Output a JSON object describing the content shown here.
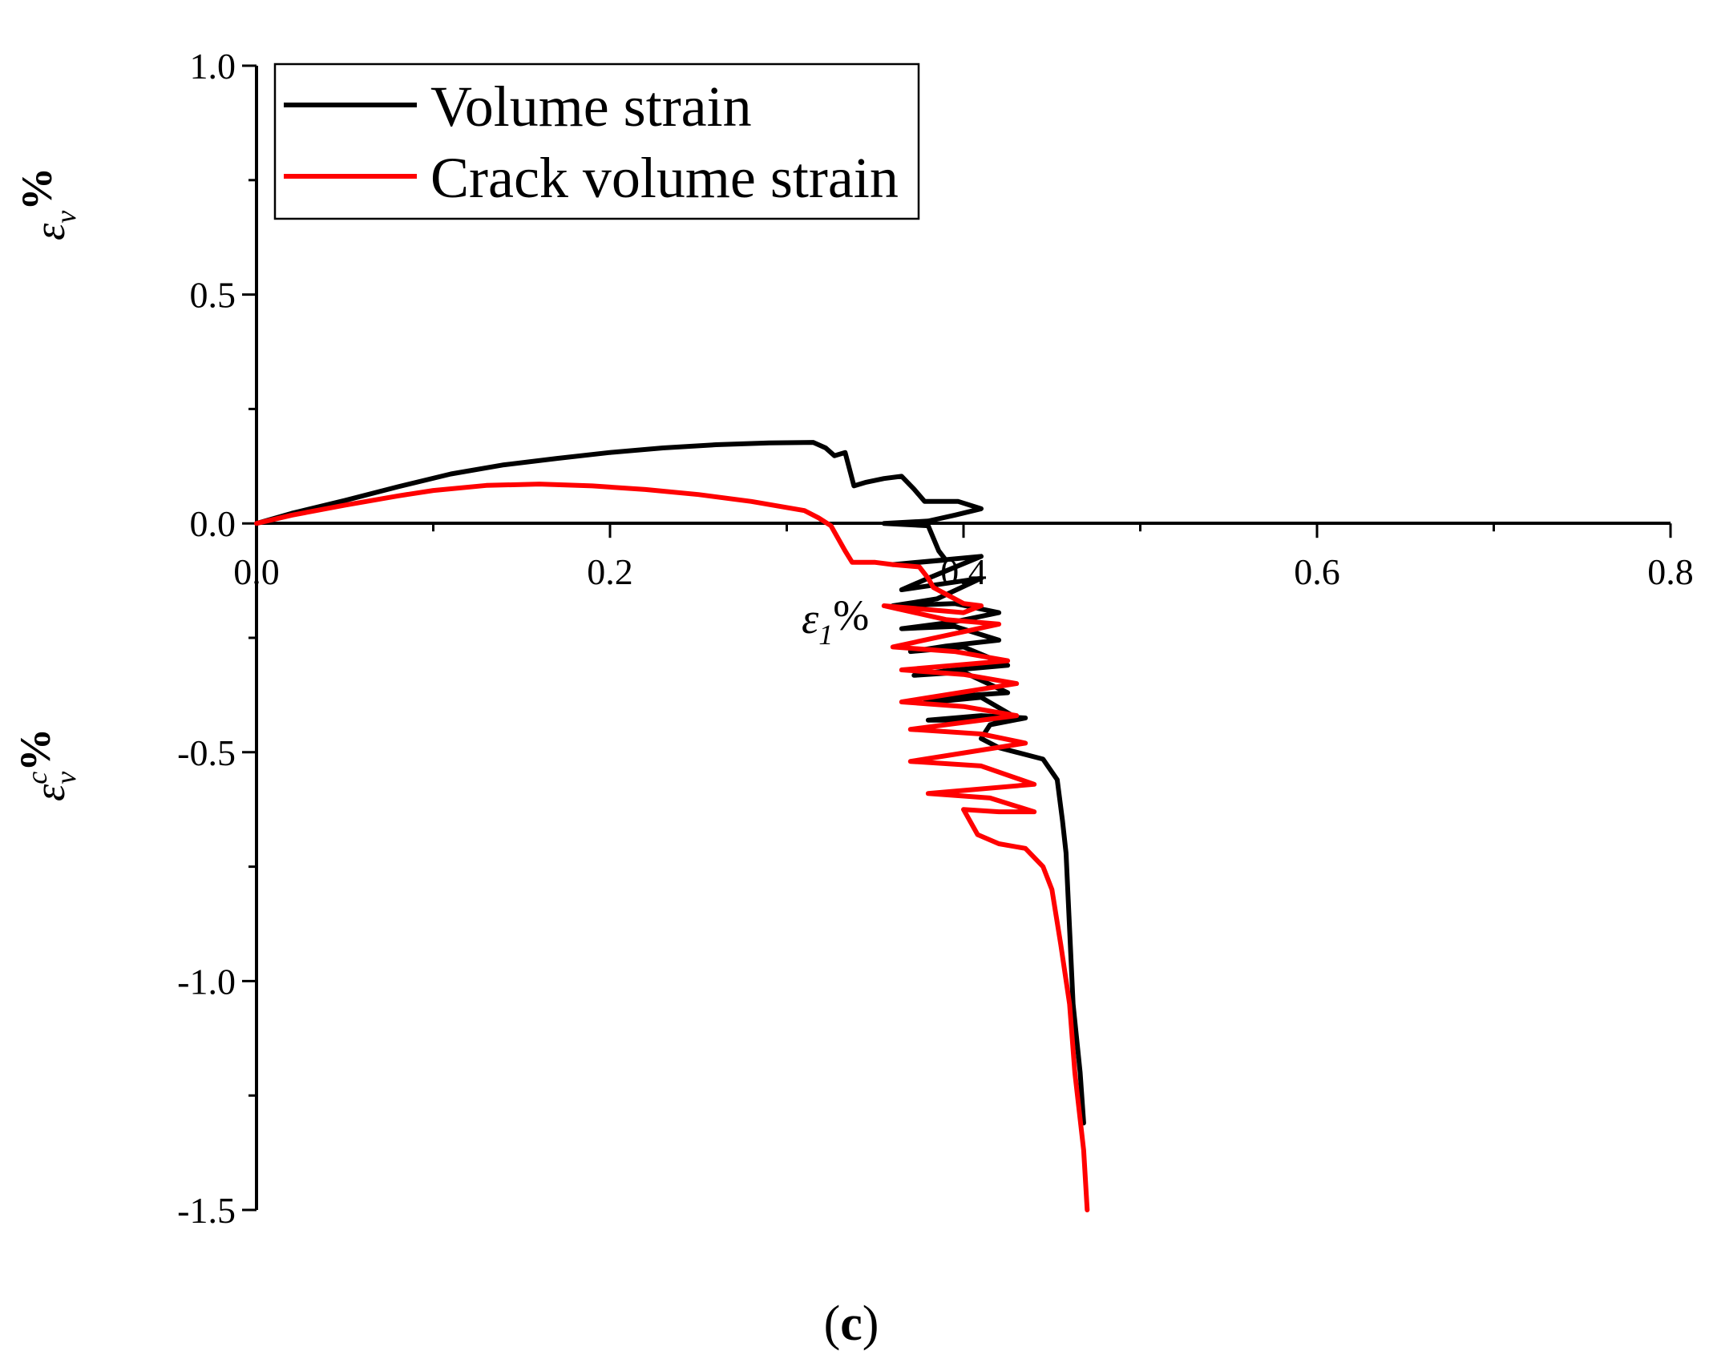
{
  "chart_data": {
    "type": "line",
    "caption": {
      "open": "(",
      "letter": "c",
      "close": ")"
    },
    "xlabel": {
      "symbol": "ε",
      "subscript": "1",
      "unit": "%"
    },
    "ylabel_top": {
      "symbol": "ε",
      "subscript": "v",
      "unit": "%"
    },
    "ylabel_bottom": {
      "symbol": "ε",
      "superscript": "c",
      "subscript": "v",
      "unit": "%"
    },
    "xlim": [
      0,
      0.8
    ],
    "ylim": [
      -1.5,
      1.0
    ],
    "xticks": [
      {
        "value": 0.0,
        "label": "0.0"
      },
      {
        "value": 0.2,
        "label": "0.2"
      },
      {
        "value": 0.4,
        "label": "0.4"
      },
      {
        "value": 0.6,
        "label": "0.6"
      },
      {
        "value": 0.8,
        "label": "0.8"
      }
    ],
    "yticks": [
      {
        "value": 1.0,
        "label": "1.0"
      },
      {
        "value": 0.5,
        "label": "0.5"
      },
      {
        "value": 0.0,
        "label": "0.0"
      },
      {
        "value": -0.5,
        "label": "-0.5"
      },
      {
        "value": -1.0,
        "label": "-1.0"
      },
      {
        "value": -1.5,
        "label": "-1.5"
      }
    ],
    "legend": {
      "position": "top-left"
    },
    "series": [
      {
        "name": "Volume strain",
        "color": "#000000",
        "points": [
          [
            0.0,
            0.0
          ],
          [
            0.02,
            0.022
          ],
          [
            0.05,
            0.05
          ],
          [
            0.08,
            0.08
          ],
          [
            0.11,
            0.108
          ],
          [
            0.14,
            0.128
          ],
          [
            0.17,
            0.142
          ],
          [
            0.2,
            0.155
          ],
          [
            0.23,
            0.165
          ],
          [
            0.26,
            0.172
          ],
          [
            0.29,
            0.176
          ],
          [
            0.315,
            0.177
          ],
          [
            0.322,
            0.165
          ],
          [
            0.327,
            0.148
          ],
          [
            0.333,
            0.155
          ],
          [
            0.338,
            0.082
          ],
          [
            0.345,
            0.09
          ],
          [
            0.355,
            0.098
          ],
          [
            0.365,
            0.103
          ],
          [
            0.372,
            0.075
          ],
          [
            0.378,
            0.048
          ],
          [
            0.385,
            0.048
          ],
          [
            0.397,
            0.048
          ],
          [
            0.41,
            0.032
          ],
          [
            0.395,
            0.018
          ],
          [
            0.38,
            0.005
          ],
          [
            0.355,
            0.0
          ],
          [
            0.38,
            -0.005
          ],
          [
            0.386,
            -0.06
          ],
          [
            0.39,
            -0.08
          ],
          [
            0.36,
            -0.09
          ],
          [
            0.41,
            -0.072
          ],
          [
            0.38,
            -0.12
          ],
          [
            0.365,
            -0.145
          ],
          [
            0.41,
            -0.12
          ],
          [
            0.385,
            -0.165
          ],
          [
            0.36,
            -0.18
          ],
          [
            0.395,
            -0.175
          ],
          [
            0.42,
            -0.195
          ],
          [
            0.395,
            -0.215
          ],
          [
            0.365,
            -0.23
          ],
          [
            0.395,
            -0.225
          ],
          [
            0.42,
            -0.255
          ],
          [
            0.39,
            -0.268
          ],
          [
            0.37,
            -0.28
          ],
          [
            0.4,
            -0.27
          ],
          [
            0.425,
            -0.31
          ],
          [
            0.39,
            -0.322
          ],
          [
            0.372,
            -0.332
          ],
          [
            0.4,
            -0.325
          ],
          [
            0.425,
            -0.37
          ],
          [
            0.395,
            -0.378
          ],
          [
            0.378,
            -0.392
          ],
          [
            0.41,
            -0.38
          ],
          [
            0.43,
            -0.425
          ],
          [
            0.405,
            -0.43
          ],
          [
            0.38,
            -0.43
          ],
          [
            0.41,
            -0.42
          ],
          [
            0.435,
            -0.425
          ],
          [
            0.415,
            -0.44
          ],
          [
            0.41,
            -0.47
          ],
          [
            0.42,
            -0.49
          ],
          [
            0.43,
            -0.5
          ],
          [
            0.445,
            -0.515
          ],
          [
            0.453,
            -0.56
          ],
          [
            0.456,
            -0.65
          ],
          [
            0.458,
            -0.72
          ],
          [
            0.462,
            -1.05
          ],
          [
            0.466,
            -1.2
          ],
          [
            0.468,
            -1.31
          ]
        ]
      },
      {
        "name": "Crack volume strain",
        "color": "#ff0000",
        "points": [
          [
            0.0,
            0.0
          ],
          [
            0.02,
            0.018
          ],
          [
            0.05,
            0.04
          ],
          [
            0.08,
            0.06
          ],
          [
            0.1,
            0.072
          ],
          [
            0.13,
            0.083
          ],
          [
            0.16,
            0.086
          ],
          [
            0.19,
            0.082
          ],
          [
            0.22,
            0.074
          ],
          [
            0.25,
            0.063
          ],
          [
            0.28,
            0.048
          ],
          [
            0.31,
            0.028
          ],
          [
            0.318,
            0.012
          ],
          [
            0.325,
            -0.005
          ],
          [
            0.333,
            -0.06
          ],
          [
            0.337,
            -0.085
          ],
          [
            0.35,
            -0.085
          ],
          [
            0.36,
            -0.09
          ],
          [
            0.375,
            -0.095
          ],
          [
            0.38,
            -0.12
          ],
          [
            0.383,
            -0.14
          ],
          [
            0.4,
            -0.175
          ],
          [
            0.41,
            -0.18
          ],
          [
            0.4,
            -0.195
          ],
          [
            0.355,
            -0.18
          ],
          [
            0.39,
            -0.21
          ],
          [
            0.42,
            -0.22
          ],
          [
            0.36,
            -0.27
          ],
          [
            0.395,
            -0.28
          ],
          [
            0.425,
            -0.3
          ],
          [
            0.365,
            -0.32
          ],
          [
            0.4,
            -0.33
          ],
          [
            0.43,
            -0.35
          ],
          [
            0.365,
            -0.39
          ],
          [
            0.4,
            -0.4
          ],
          [
            0.43,
            -0.42
          ],
          [
            0.37,
            -0.45
          ],
          [
            0.41,
            -0.46
          ],
          [
            0.435,
            -0.48
          ],
          [
            0.37,
            -0.52
          ],
          [
            0.41,
            -0.53
          ],
          [
            0.44,
            -0.57
          ],
          [
            0.38,
            -0.59
          ],
          [
            0.415,
            -0.6
          ],
          [
            0.44,
            -0.63
          ],
          [
            0.42,
            -0.63
          ],
          [
            0.4,
            -0.625
          ],
          [
            0.408,
            -0.68
          ],
          [
            0.42,
            -0.7
          ],
          [
            0.435,
            -0.71
          ],
          [
            0.445,
            -0.75
          ],
          [
            0.45,
            -0.8
          ],
          [
            0.455,
            -0.92
          ],
          [
            0.46,
            -1.05
          ],
          [
            0.463,
            -1.2
          ],
          [
            0.468,
            -1.37
          ],
          [
            0.47,
            -1.5
          ]
        ]
      }
    ]
  }
}
